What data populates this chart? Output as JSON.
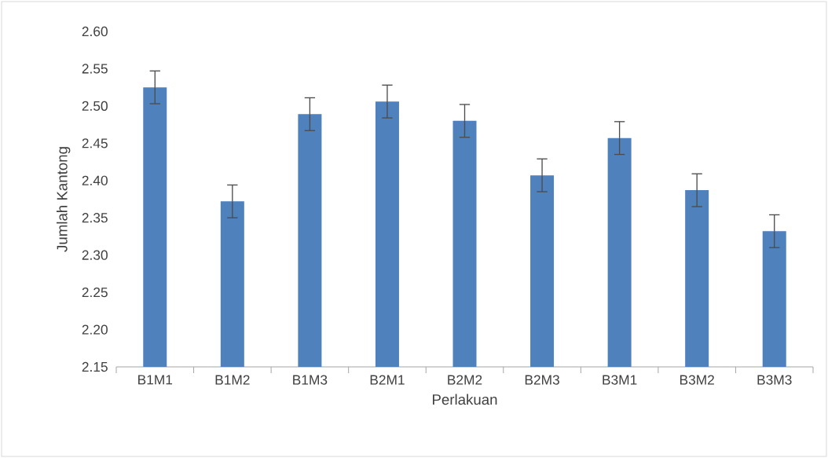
{
  "chart_data": {
    "type": "bar",
    "xlabel": "Perlakuan",
    "ylabel": "Jumlah Kantong",
    "categories": [
      "B1M1",
      "B1M2",
      "B1M3",
      "B2M1",
      "B2M2",
      "B2M3",
      "B3M1",
      "B3M2",
      "B3M3"
    ],
    "values": [
      2.525,
      2.372,
      2.489,
      2.506,
      2.48,
      2.407,
      2.457,
      2.387,
      2.332
    ],
    "errors": [
      0.022,
      0.022,
      0.022,
      0.022,
      0.022,
      0.022,
      0.022,
      0.022,
      0.022
    ],
    "color": "#4f81bd",
    "ylim": [
      2.15,
      2.6
    ],
    "yticks": [
      {
        "value": 2.15,
        "label": "2.15"
      },
      {
        "value": 2.2,
        "label": "2.20"
      },
      {
        "value": 2.25,
        "label": "2.25"
      },
      {
        "value": 2.3,
        "label": "2.30"
      },
      {
        "value": 2.35,
        "label": "2.35"
      },
      {
        "value": 2.4,
        "label": "2.40"
      },
      {
        "value": 2.45,
        "label": "2.45"
      },
      {
        "value": 2.5,
        "label": "2.50"
      },
      {
        "value": 2.55,
        "label": "2.55"
      },
      {
        "value": 2.6,
        "label": "2.60"
      }
    ],
    "grid": false
  }
}
